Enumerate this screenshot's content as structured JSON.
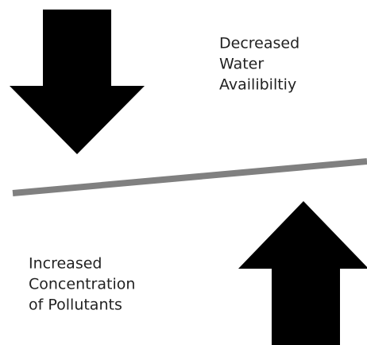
{
  "top_label": {
    "lines": [
      "Decreased",
      "Water",
      "Availibiltiy"
    ]
  },
  "bottom_label": {
    "lines": [
      "Increased",
      "Concentration",
      "of Pollutants"
    ]
  }
}
